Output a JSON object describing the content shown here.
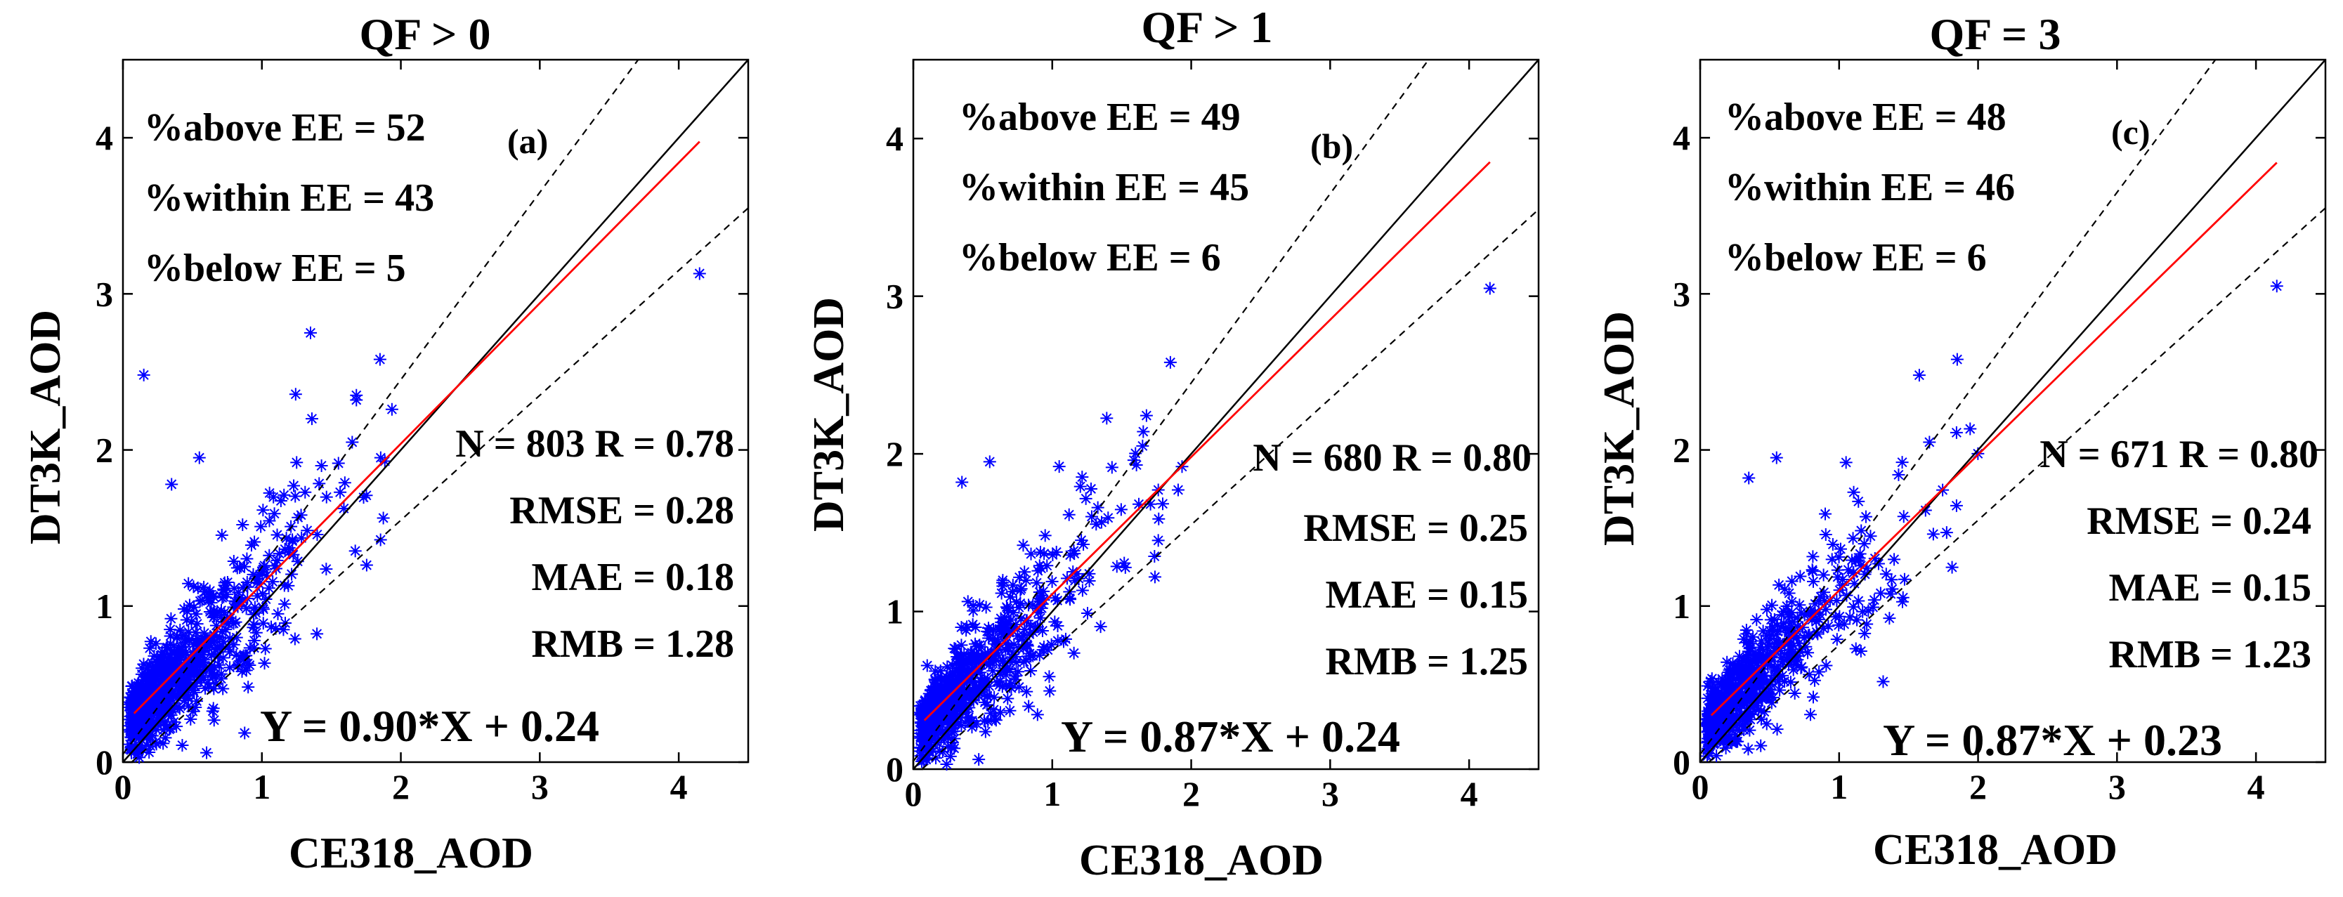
{
  "chart_data": [
    {
      "type": "scatter",
      "panel_label": "(a)",
      "title": "QF > 0",
      "xlabel": "CE318_AOD",
      "ylabel": "DT3K_AOD",
      "xlim": [
        0,
        4.5
      ],
      "ylim": [
        0,
        4.5
      ],
      "xticks": [
        "0",
        "1",
        "2",
        "3",
        "4"
      ],
      "yticks": [
        "0",
        "1",
        "2",
        "3",
        "4"
      ],
      "stats": {
        "above": "%above EE = 52",
        "within": "%within EE = 43",
        "below": "%below EE = 5",
        "n_r": "N = 803 R = 0.78",
        "rmse": "RMSE = 0.28",
        "mae": "MAE = 0.18",
        "rmb": "RMB = 1.28"
      },
      "equation": "Y = 0.90*X + 0.24",
      "fit": {
        "slope": 0.9,
        "intercept": 0.24,
        "x_range": [
          0.08,
          4.15
        ]
      },
      "ee": {
        "offset": 0.05,
        "factor": 0.2
      },
      "n_points": 803,
      "notable_points": [
        [
          0.15,
          2.48
        ],
        [
          1.35,
          2.75
        ],
        [
          1.85,
          2.58
        ],
        [
          1.68,
          2.35
        ],
        [
          1.68,
          2.32
        ],
        [
          4.15,
          3.13
        ],
        [
          0.55,
          1.95
        ],
        [
          1.65,
          2.05
        ],
        [
          1.25,
          1.92
        ],
        [
          0.35,
          1.78
        ]
      ],
      "colors": {
        "points": "#0000ff",
        "fit": "#ff0000",
        "one_to_one": "#000000",
        "ee": "#000000"
      }
    },
    {
      "type": "scatter",
      "panel_label": "(b)",
      "title": "QF > 1",
      "xlabel": "CE318_AOD",
      "ylabel": "DT3K_AOD",
      "xlim": [
        0,
        4.5
      ],
      "ylim": [
        0,
        4.5
      ],
      "xticks": [
        "0",
        "1",
        "2",
        "3",
        "4"
      ],
      "yticks": [
        "0",
        "1",
        "2",
        "3",
        "4"
      ],
      "stats": {
        "above": "%above EE = 49",
        "within": "%within EE = 45",
        "below": "%below EE = 6",
        "n_r": "N = 680 R = 0.80",
        "rmse": "RMSE = 0.25",
        "mae": "MAE = 0.15",
        "rmb": "RMB = 1.25"
      },
      "equation": "Y = 0.87*X + 0.24",
      "fit": {
        "slope": 0.87,
        "intercept": 0.24,
        "x_range": [
          0.08,
          4.15
        ]
      },
      "ee": {
        "offset": 0.05,
        "factor": 0.2
      },
      "n_points": 680,
      "notable_points": [
        [
          4.15,
          3.05
        ],
        [
          1.85,
          2.58
        ],
        [
          0.55,
          1.95
        ],
        [
          1.65,
          2.05
        ],
        [
          1.05,
          1.92
        ],
        [
          0.35,
          1.82
        ]
      ],
      "colors": {
        "points": "#0000ff",
        "fit": "#ff0000",
        "one_to_one": "#000000",
        "ee": "#000000"
      }
    },
    {
      "type": "scatter",
      "panel_label": "(c)",
      "title": "QF = 3",
      "xlabel": "CE318_AOD",
      "ylabel": "DT3K_AOD",
      "xlim": [
        0,
        4.5
      ],
      "ylim": [
        0,
        4.5
      ],
      "xticks": [
        "0",
        "1",
        "2",
        "3",
        "4"
      ],
      "yticks": [
        "0",
        "1",
        "2",
        "3",
        "4"
      ],
      "stats": {
        "above": "%above EE = 48",
        "within": "%within EE = 46",
        "below": "%below EE = 6",
        "n_r": "N = 671 R = 0.80",
        "rmse": "RMSE = 0.24",
        "mae": "MAE = 0.15",
        "rmb": "RMB = 1.23"
      },
      "equation": "Y = 0.87*X + 0.23",
      "fit": {
        "slope": 0.87,
        "intercept": 0.23,
        "x_range": [
          0.08,
          4.15
        ]
      },
      "ee": {
        "offset": 0.05,
        "factor": 0.2
      },
      "n_points": 671,
      "notable_points": [
        [
          4.15,
          3.05
        ],
        [
          1.85,
          2.58
        ],
        [
          0.55,
          1.95
        ],
        [
          1.65,
          2.05
        ],
        [
          1.05,
          1.92
        ],
        [
          0.35,
          1.82
        ]
      ],
      "colors": {
        "points": "#0000ff",
        "fit": "#ff0000",
        "one_to_one": "#000000",
        "ee": "#000000"
      }
    }
  ]
}
